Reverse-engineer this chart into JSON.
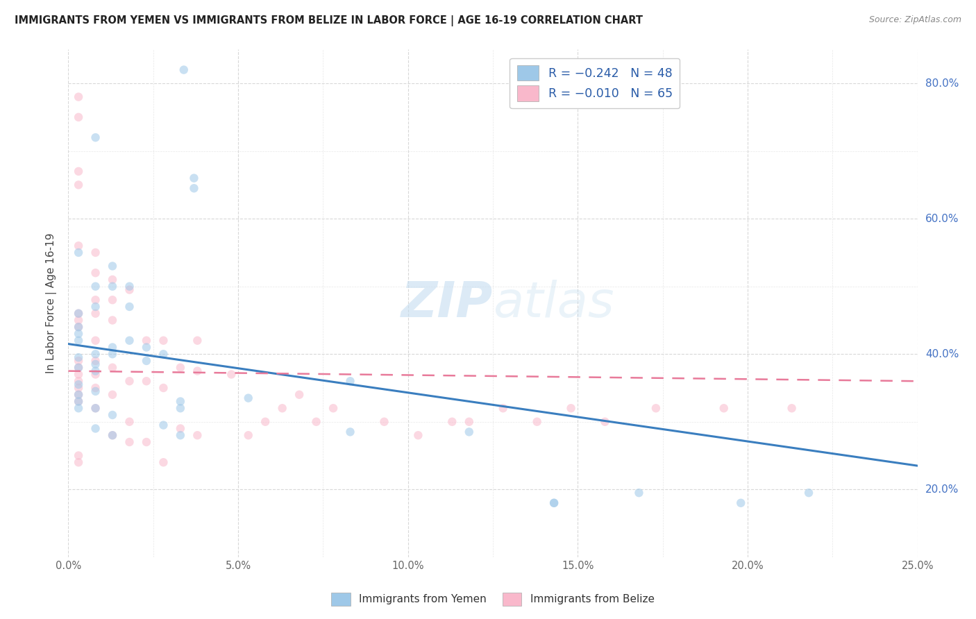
{
  "title": "IMMIGRANTS FROM YEMEN VS IMMIGRANTS FROM BELIZE IN LABOR FORCE | AGE 16-19 CORRELATION CHART",
  "source": "Source: ZipAtlas.com",
  "xlim": [
    0.0,
    0.25
  ],
  "ylim": [
    0.1,
    0.85
  ],
  "x_tick_vals": [
    0.0,
    0.05,
    0.1,
    0.15,
    0.2,
    0.25
  ],
  "x_tick_labels": [
    "0.0%",
    "5.0%",
    "10.0%",
    "15.0%",
    "20.0%",
    "25.0%"
  ],
  "y_tick_vals": [
    0.2,
    0.4,
    0.6,
    0.8
  ],
  "y_tick_labels": [
    "20.0%",
    "40.0%",
    "60.0%",
    "80.0%"
  ],
  "ylabel": "In Labor Force | Age 16-19",
  "watermark": "ZIPatlas",
  "yemen_scatter_x": [
    0.034,
    0.008,
    0.037,
    0.037,
    0.003,
    0.003,
    0.003,
    0.003,
    0.003,
    0.008,
    0.008,
    0.013,
    0.013,
    0.018,
    0.018,
    0.003,
    0.003,
    0.008,
    0.008,
    0.008,
    0.013,
    0.013,
    0.018,
    0.023,
    0.023,
    0.028,
    0.003,
    0.003,
    0.003,
    0.003,
    0.008,
    0.008,
    0.008,
    0.013,
    0.013,
    0.028,
    0.033,
    0.033,
    0.033,
    0.053,
    0.083,
    0.083,
    0.118,
    0.143,
    0.143,
    0.168,
    0.198,
    0.218
  ],
  "yemen_scatter_y": [
    0.82,
    0.72,
    0.645,
    0.66,
    0.55,
    0.46,
    0.44,
    0.43,
    0.42,
    0.5,
    0.47,
    0.53,
    0.5,
    0.5,
    0.47,
    0.395,
    0.38,
    0.4,
    0.385,
    0.375,
    0.41,
    0.4,
    0.42,
    0.41,
    0.39,
    0.4,
    0.355,
    0.34,
    0.33,
    0.32,
    0.345,
    0.32,
    0.29,
    0.31,
    0.28,
    0.295,
    0.28,
    0.32,
    0.33,
    0.335,
    0.36,
    0.285,
    0.285,
    0.18,
    0.18,
    0.195,
    0.18,
    0.195
  ],
  "belize_scatter_x": [
    0.003,
    0.003,
    0.003,
    0.003,
    0.003,
    0.003,
    0.003,
    0.003,
    0.003,
    0.003,
    0.003,
    0.003,
    0.003,
    0.003,
    0.003,
    0.003,
    0.003,
    0.008,
    0.008,
    0.008,
    0.008,
    0.008,
    0.008,
    0.008,
    0.008,
    0.008,
    0.013,
    0.013,
    0.013,
    0.013,
    0.013,
    0.013,
    0.018,
    0.018,
    0.018,
    0.018,
    0.023,
    0.023,
    0.023,
    0.028,
    0.028,
    0.028,
    0.033,
    0.033,
    0.038,
    0.038,
    0.038,
    0.048,
    0.053,
    0.058,
    0.063,
    0.068,
    0.073,
    0.078,
    0.093,
    0.103,
    0.113,
    0.118,
    0.128,
    0.138,
    0.148,
    0.158,
    0.173,
    0.193,
    0.213
  ],
  "belize_scatter_y": [
    0.78,
    0.75,
    0.67,
    0.65,
    0.56,
    0.46,
    0.45,
    0.44,
    0.39,
    0.38,
    0.37,
    0.36,
    0.35,
    0.34,
    0.33,
    0.25,
    0.24,
    0.55,
    0.52,
    0.48,
    0.46,
    0.42,
    0.39,
    0.37,
    0.35,
    0.32,
    0.51,
    0.48,
    0.45,
    0.38,
    0.34,
    0.28,
    0.495,
    0.36,
    0.3,
    0.27,
    0.42,
    0.36,
    0.27,
    0.42,
    0.35,
    0.24,
    0.38,
    0.29,
    0.42,
    0.375,
    0.28,
    0.37,
    0.28,
    0.3,
    0.32,
    0.34,
    0.3,
    0.32,
    0.3,
    0.28,
    0.3,
    0.3,
    0.32,
    0.3,
    0.32,
    0.3,
    0.32,
    0.32,
    0.32
  ],
  "yemen_line_x": [
    0.0,
    0.25
  ],
  "yemen_line_y": [
    0.415,
    0.235
  ],
  "belize_line_x": [
    0.0,
    0.25
  ],
  "belize_line_y": [
    0.375,
    0.36
  ],
  "yemen_color": "#9ec8e8",
  "belize_color": "#f9b8cb",
  "yemen_line_color": "#3a7ebf",
  "belize_line_color": "#e87a9a",
  "scatter_size": 80,
  "scatter_alpha": 0.55,
  "background_color": "#ffffff",
  "grid_color": "#d8d8d8",
  "title_color": "#222222",
  "source_color": "#888888",
  "axis_label_color": "#444444",
  "right_axis_color": "#4472c4",
  "legend_label_color": "#2a5ca8"
}
